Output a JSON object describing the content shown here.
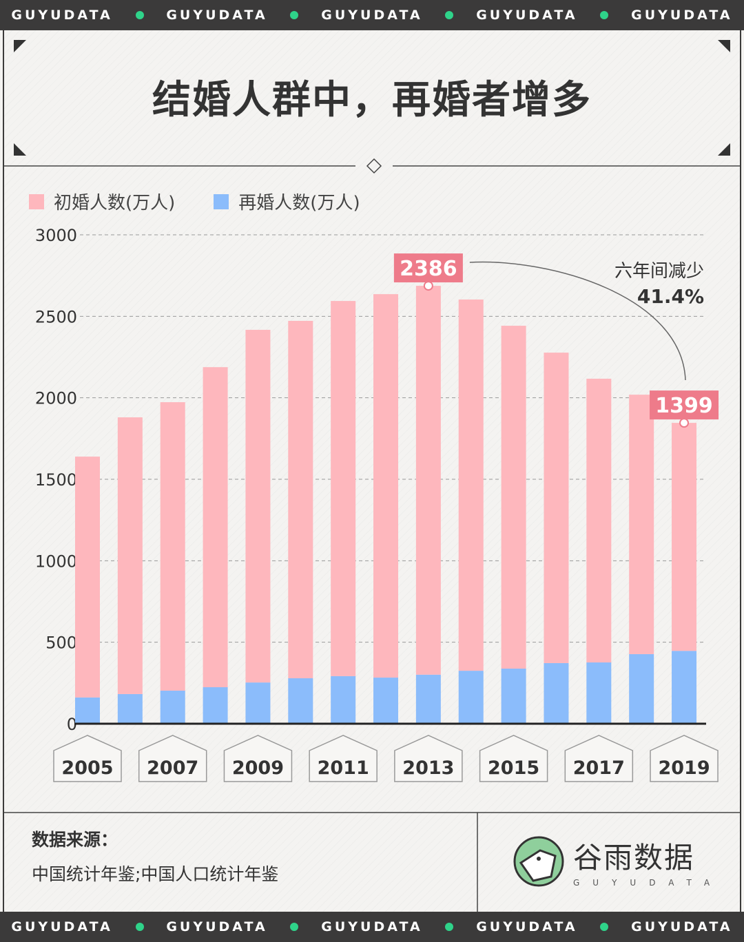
{
  "band_text": "GUYUDATA",
  "title": "结婚人群中，再婚者增多",
  "legend": [
    {
      "label": "初婚人数(万人)",
      "color": "#feb7bd"
    },
    {
      "label": "再婚人数(万人)",
      "color": "#8bbcfb"
    }
  ],
  "chart_data": {
    "type": "bar",
    "stacked": true,
    "categories": [
      "2005",
      "2006",
      "2007",
      "2008",
      "2009",
      "2010",
      "2011",
      "2012",
      "2013",
      "2014",
      "2015",
      "2016",
      "2017",
      "2018",
      "2019"
    ],
    "x_tick_labels": [
      "2005",
      "2007",
      "2009",
      "2011",
      "2013",
      "2015",
      "2017",
      "2019"
    ],
    "series": [
      {
        "name": "再婚人数(万人)",
        "color": "#8bbcfb",
        "values": [
          161,
          182,
          203,
          224,
          253,
          279,
          292,
          283,
          301,
          325,
          338,
          372,
          376,
          427,
          447
        ]
      },
      {
        "name": "初婚人数(万人)",
        "color": "#feb7bd",
        "values": [
          1478,
          1698,
          1770,
          1964,
          2164,
          2193,
          2302,
          2353,
          2386,
          2278,
          2104,
          1905,
          1741,
          1592,
          1399
        ]
      }
    ],
    "ylim": [
      0,
      3000
    ],
    "y_ticks": [
      "0",
      "500",
      "1000",
      "1500",
      "2000",
      "2500",
      "3000"
    ],
    "grid": true,
    "data_labels": [
      {
        "category": "2013",
        "text": "2386"
      },
      {
        "category": "2019",
        "text": "1399"
      }
    ],
    "annotation": {
      "line1": "六年间减少",
      "line2": "41.4%"
    },
    "label_color": "#ee7b8a"
  },
  "footer": {
    "source_heading": "数据来源：",
    "source_text": "中国统计年鉴;中国人口统计年鉴",
    "logo_name": "谷雨数据",
    "logo_sub": "GUYUDATA"
  }
}
